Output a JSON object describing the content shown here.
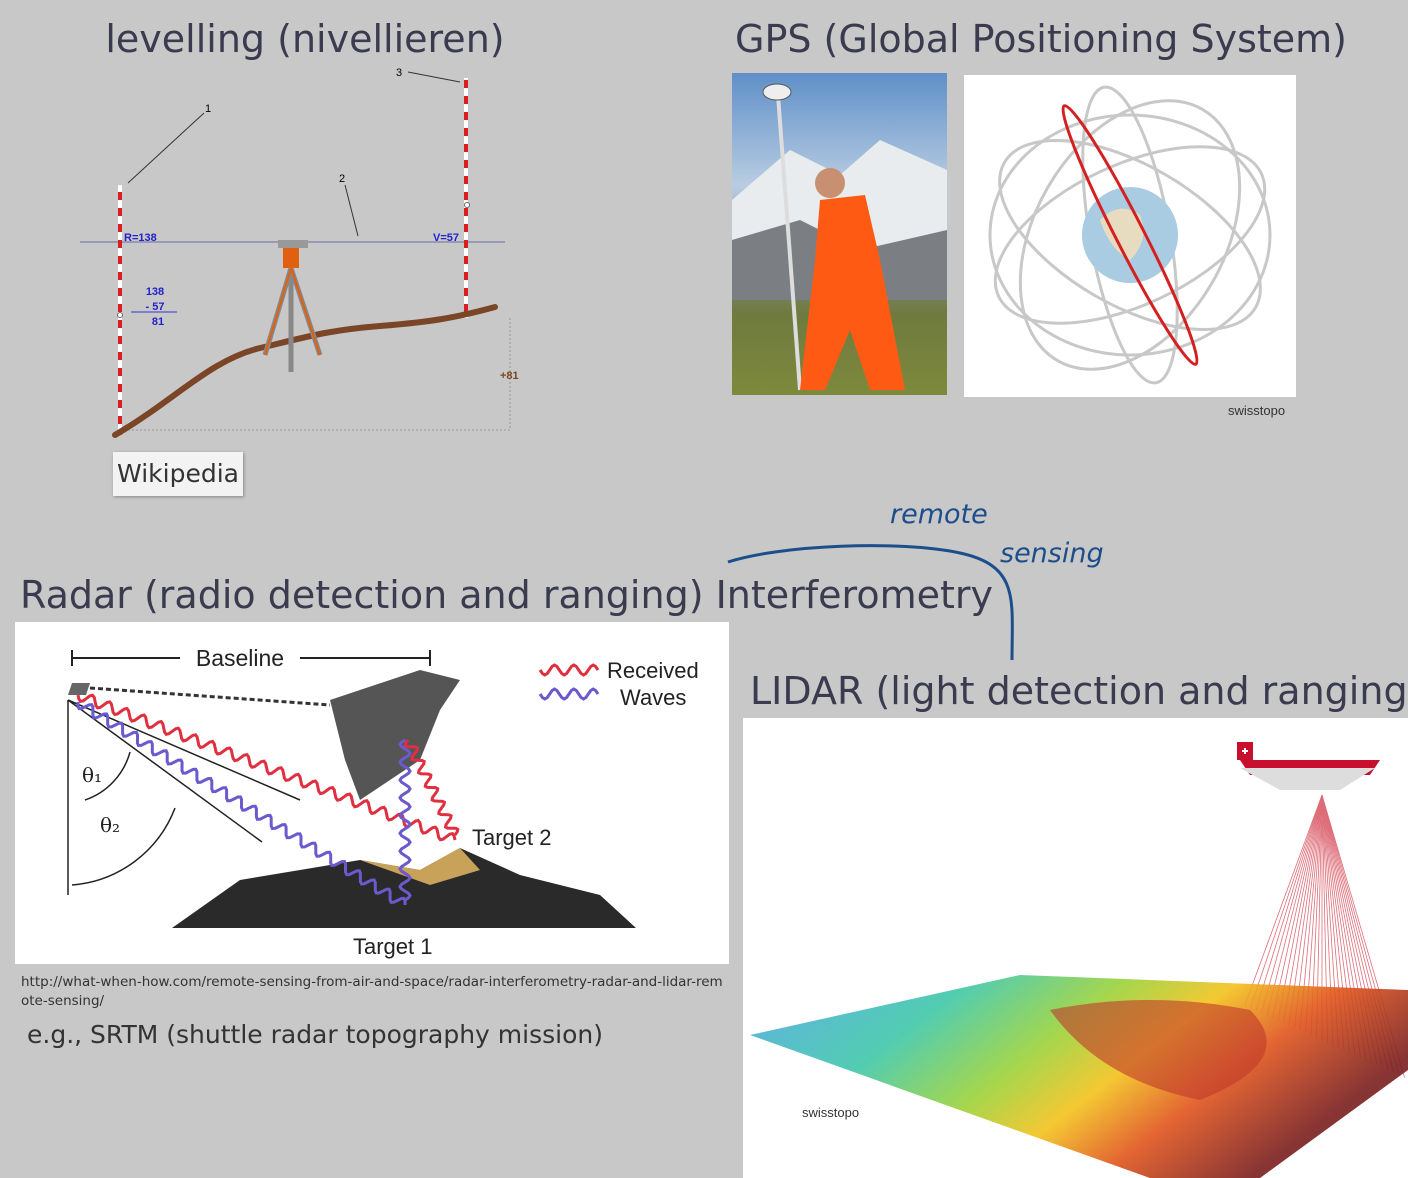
{
  "levelling": {
    "title": "levelling (nivellieren)",
    "diagram": {
      "markers": [
        "1",
        "2",
        "3"
      ],
      "back_reading": "R=138",
      "fore_reading": "V=57",
      "calculation": [
        "138",
        "- 57",
        "81"
      ],
      "height_difference": "+81"
    },
    "credit": "Wikipedia"
  },
  "gps": {
    "title": "GPS (Global Positioning System)",
    "credit": "swisstopo"
  },
  "annotation": {
    "handwriting": [
      "remote",
      "sensing"
    ]
  },
  "radar": {
    "title": "Radar (radio detection and ranging) Interferometry",
    "diagram": {
      "baseline": "Baseline",
      "legend": [
        "Received",
        "Waves"
      ],
      "angles": [
        "θ₁",
        "θ₂"
      ],
      "target_2": "Target 2",
      "target_1": "Target 1"
    },
    "source": "http://what-when-how.com/remote-sensing-from-air-and-space/radar-interferometry-radar-and-lidar-remote-sensing/",
    "example": "e.g., SRTM (shuttle radar topography mission)"
  },
  "lidar": {
    "title": "LIDAR (light detection and ranging)",
    "credit": "swisstopo"
  }
}
